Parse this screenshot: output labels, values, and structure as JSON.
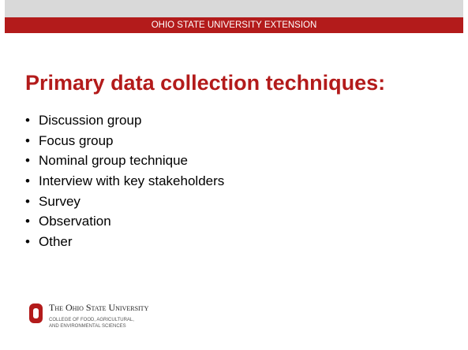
{
  "header": {
    "banner": "OHIO STATE UNIVERSITY EXTENSION"
  },
  "title": "Primary data collection techniques:",
  "bullets": [
    "Discussion group",
    "Focus group",
    "Nominal group technique",
    "Interview with key stakeholders",
    "Survey",
    "Observation",
    "Other"
  ],
  "footer": {
    "university": "The Ohio State University",
    "college_line1": "COLLEGE OF FOOD, AGRICULTURAL,",
    "college_line2": "AND ENVIRONMENTAL SCIENCES"
  }
}
